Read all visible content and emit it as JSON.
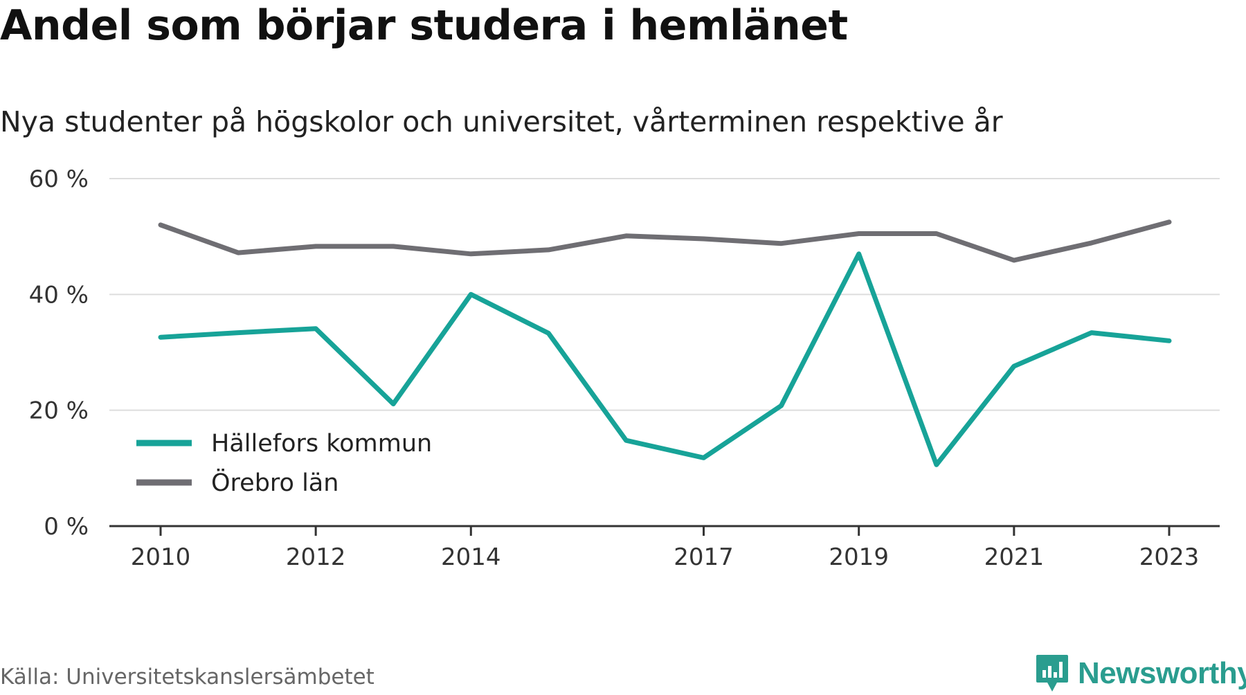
{
  "header": {
    "title": "Andel som börjar studera i hemlänet",
    "subtitle": "Nya studenter på högskolor och universitet, vårterminen respektive år"
  },
  "footer": {
    "source": "Källa: Universitetskanslersämbetet",
    "brand": "Newsworthy",
    "brand_icon": "bar-chart-speech-bubble-icon"
  },
  "colors": {
    "series_1": "#17a398",
    "series_2": "#6f6e73",
    "grid": "#dddddd",
    "axis": "#333333",
    "brand": "#2a9d8f"
  },
  "chart_data": {
    "type": "line",
    "x": [
      2010,
      2011,
      2012,
      2013,
      2014,
      2015,
      2016,
      2017,
      2018,
      2019,
      2020,
      2021,
      2022,
      2023
    ],
    "x_tick_values": [
      2010,
      2012,
      2014,
      2017,
      2019,
      2021,
      2023
    ],
    "x_tick_labels": [
      "2010",
      "2012",
      "2014",
      "2017",
      "2019",
      "2021",
      "2023"
    ],
    "y_tick_values": [
      0,
      20,
      40,
      60
    ],
    "y_tick_labels": [
      "0 %",
      "20 %",
      "40 %",
      "60 %"
    ],
    "ylim": [
      0,
      60
    ],
    "grid": true,
    "legend_position": "bottom-left",
    "series": [
      {
        "name": "Hällefors kommun",
        "color": "#17a398",
        "values": [
          32.6,
          33.4,
          34.1,
          21.1,
          40.0,
          33.3,
          14.8,
          11.8,
          20.8,
          47.0,
          10.6,
          27.6,
          33.4,
          32.0
        ]
      },
      {
        "name": "Örebro län",
        "color": "#6f6e73",
        "values": [
          52.0,
          47.2,
          48.3,
          48.3,
          47.0,
          47.7,
          50.1,
          49.6,
          48.8,
          50.5,
          50.5,
          45.9,
          48.9,
          52.5
        ]
      }
    ]
  }
}
